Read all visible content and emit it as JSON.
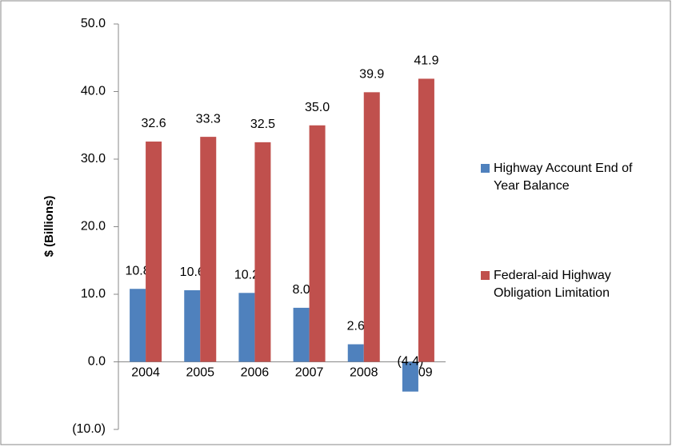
{
  "chart_data": {
    "type": "bar",
    "y_label": "$ (Billions)",
    "categories": [
      "2004",
      "2005",
      "2006",
      "2007",
      "2008",
      "2009"
    ],
    "series": [
      {
        "name": "Highway Account End of Year Balance",
        "color": "#4f81bd",
        "values": [
          10.8,
          10.6,
          10.2,
          8.0,
          2.6,
          -4.4
        ],
        "value_labels": [
          "10.8",
          "10.6",
          "10.2",
          "8.0",
          "2.6",
          "(4.4)"
        ]
      },
      {
        "name": "Federal-aid Highway Obligation Limitation",
        "color": "#c0504d",
        "values": [
          32.6,
          33.3,
          32.5,
          35.0,
          39.9,
          41.9
        ],
        "value_labels": [
          "32.6",
          "33.3",
          "32.5",
          "35.0",
          "39.9",
          "41.9"
        ]
      }
    ],
    "ylim": [
      -10,
      50
    ],
    "yticks": [
      {
        "value": -10,
        "label": "(10.0)"
      },
      {
        "value": 0,
        "label": "0.0"
      },
      {
        "value": 10,
        "label": "10.0"
      },
      {
        "value": 20,
        "label": "20.0"
      },
      {
        "value": 30,
        "label": "30.0"
      },
      {
        "value": 40,
        "label": "40.0"
      },
      {
        "value": 50,
        "label": "50.0"
      }
    ],
    "negative_label_color": "#ff0000",
    "legend": "right"
  }
}
